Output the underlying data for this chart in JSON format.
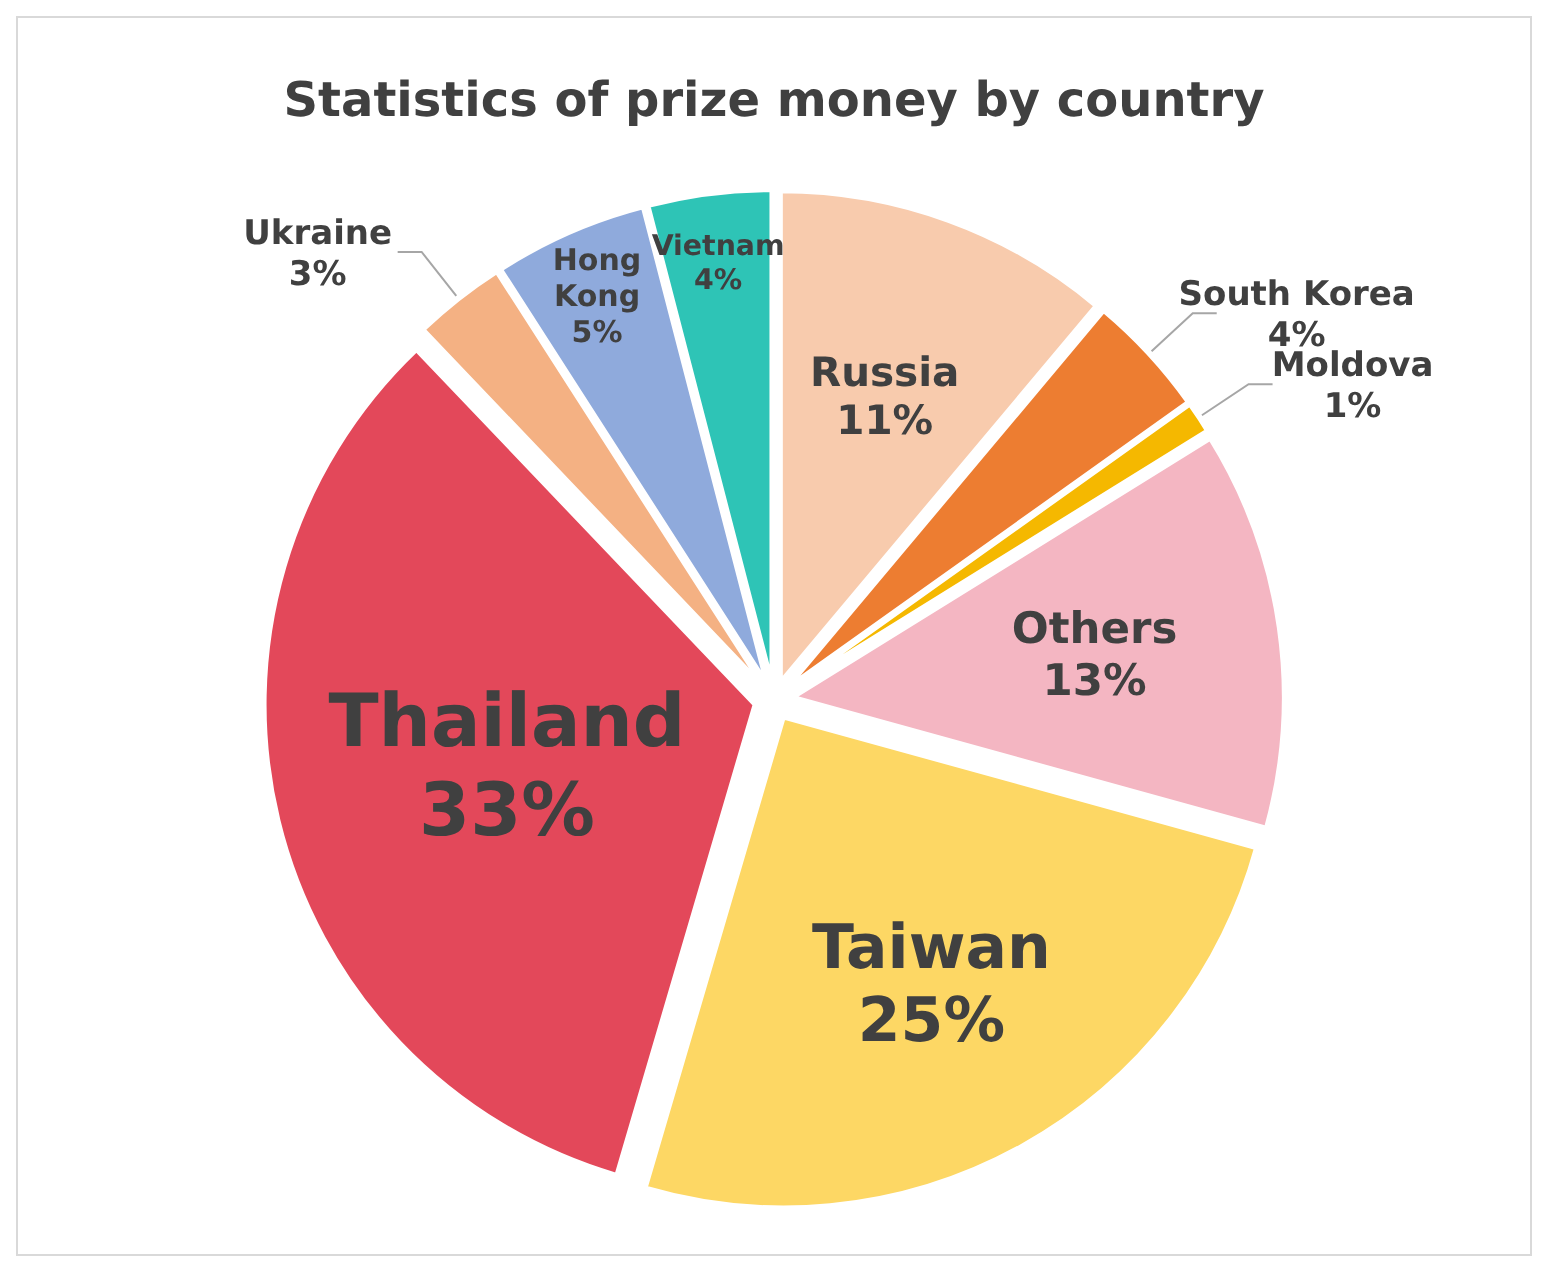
{
  "chart_data": {
    "type": "pie",
    "title": "Statistics of prize money by country",
    "categories": [
      "Russia",
      "South Korea",
      "Moldova",
      "Others",
      "Taiwan",
      "Thailand",
      "Ukraine",
      "Hong Kong",
      "Vietnam"
    ],
    "values": [
      11,
      4,
      1,
      13,
      25,
      33,
      3,
      5,
      4
    ],
    "colors": [
      "#f8cbad",
      "#ed7d31",
      "#f5b800",
      "#f4b6c2",
      "#fdd764",
      "#e3485a",
      "#f4b183",
      "#8faadc",
      "#2ec4b6"
    ],
    "value_labels": [
      "11%",
      "4%",
      "1%",
      "13%",
      "25%",
      "33%",
      "3%",
      "5%",
      "4%"
    ]
  }
}
